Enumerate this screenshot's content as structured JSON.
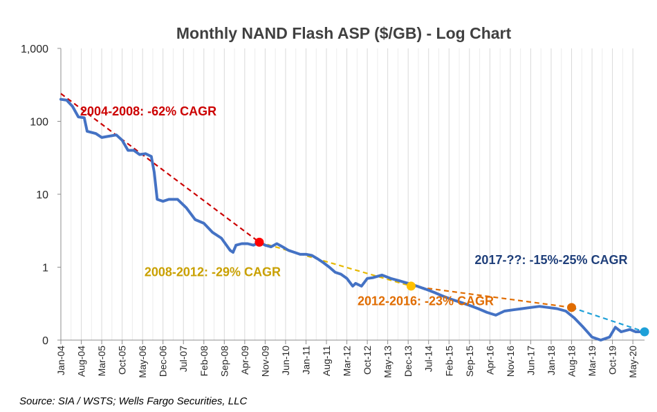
{
  "chart_data": {
    "type": "line",
    "title": "Monthly NAND Flash ASP ($/GB) - Log Chart",
    "source": "Source: SIA / WSTS; Wells Fargo Securities, LLC",
    "y_scale": "log",
    "ylim": [
      0.1,
      1000
    ],
    "yticks": [
      {
        "value": 1000,
        "label": "1,000"
      },
      {
        "value": 100,
        "label": "100"
      },
      {
        "value": 10,
        "label": "10"
      },
      {
        "value": 1,
        "label": "1"
      },
      {
        "value": 0.1,
        "label": "0"
      }
    ],
    "x_start": "2004-01",
    "x_end": "2020-09",
    "xtick_labels": [
      "Jan-04",
      "Aug-04",
      "Mar-05",
      "Oct-05",
      "May-06",
      "Dec-06",
      "Jul-07",
      "Feb-08",
      "Sep-08",
      "Apr-09",
      "Nov-09",
      "Jun-10",
      "Jan-11",
      "Aug-11",
      "Mar-12",
      "Oct-12",
      "May-13",
      "Dec-13",
      "Jul-14",
      "Feb-15",
      "Sep-15",
      "Apr-16",
      "Nov-16",
      "Jun-17",
      "Jan-18",
      "Aug-18",
      "Mar-19",
      "Oct-19",
      "May-20"
    ],
    "grid": "vertical",
    "colors": {
      "series": "#4472c4",
      "trend_2004": "#cc0000",
      "trend_2008": "#e6b800",
      "trend_2012": "#e06c00",
      "trend_2017": "#1ea0d8",
      "annotation_2017": "#1f3f7a",
      "annotation_2008": "#c9a000"
    },
    "series": [
      {
        "name": "",
        "points": [
          [
            "2004-01",
            200
          ],
          [
            "2004-03",
            195
          ],
          [
            "2004-05",
            160
          ],
          [
            "2004-07",
            115
          ],
          [
            "2004-09",
            112
          ],
          [
            "2004-10",
            73
          ],
          [
            "2005-01",
            68
          ],
          [
            "2005-03",
            60
          ],
          [
            "2005-05",
            62
          ],
          [
            "2005-08",
            65
          ],
          [
            "2005-10",
            55
          ],
          [
            "2005-12",
            40
          ],
          [
            "2006-02",
            40
          ],
          [
            "2006-04",
            35
          ],
          [
            "2006-06",
            36
          ],
          [
            "2006-08",
            33
          ],
          [
            "2006-09",
            20
          ],
          [
            "2006-10",
            8.5
          ],
          [
            "2006-12",
            8
          ],
          [
            "2007-02",
            8.5
          ],
          [
            "2007-05",
            8.5
          ],
          [
            "2007-08",
            6.5
          ],
          [
            "2007-11",
            4.5
          ],
          [
            "2008-02",
            4.0
          ],
          [
            "2008-05",
            3.0
          ],
          [
            "2008-08",
            2.5
          ],
          [
            "2008-11",
            1.7
          ],
          [
            "2008-12",
            1.6
          ],
          [
            "2009-01",
            2.0
          ],
          [
            "2009-03",
            2.1
          ],
          [
            "2009-05",
            2.1
          ],
          [
            "2009-07",
            2.0
          ],
          [
            "2009-09",
            2.2
          ],
          [
            "2009-11",
            2.0
          ],
          [
            "2010-01",
            1.9
          ],
          [
            "2010-03",
            2.1
          ],
          [
            "2010-05",
            1.9
          ],
          [
            "2010-07",
            1.7
          ],
          [
            "2010-09",
            1.6
          ],
          [
            "2010-11",
            1.5
          ],
          [
            "2011-01",
            1.5
          ],
          [
            "2011-03",
            1.45
          ],
          [
            "2011-05",
            1.3
          ],
          [
            "2011-07",
            1.15
          ],
          [
            "2011-09",
            1.0
          ],
          [
            "2011-11",
            0.85
          ],
          [
            "2012-01",
            0.8
          ],
          [
            "2012-03",
            0.7
          ],
          [
            "2012-05",
            0.55
          ],
          [
            "2012-06",
            0.6
          ],
          [
            "2012-08",
            0.55
          ],
          [
            "2012-10",
            0.7
          ],
          [
            "2012-12",
            0.72
          ],
          [
            "2013-03",
            0.78
          ],
          [
            "2013-06",
            0.7
          ],
          [
            "2013-09",
            0.65
          ],
          [
            "2013-12",
            0.6
          ],
          [
            "2014-03",
            0.55
          ],
          [
            "2014-06",
            0.5
          ],
          [
            "2014-09",
            0.45
          ],
          [
            "2014-12",
            0.4
          ],
          [
            "2015-03",
            0.36
          ],
          [
            "2015-06",
            0.33
          ],
          [
            "2015-09",
            0.3
          ],
          [
            "2015-12",
            0.27
          ],
          [
            "2016-03",
            0.24
          ],
          [
            "2016-06",
            0.22
          ],
          [
            "2016-09",
            0.25
          ],
          [
            "2016-12",
            0.26
          ],
          [
            "2017-03",
            0.27
          ],
          [
            "2017-06",
            0.28
          ],
          [
            "2017-09",
            0.29
          ],
          [
            "2017-12",
            0.28
          ],
          [
            "2018-03",
            0.27
          ],
          [
            "2018-06",
            0.25
          ],
          [
            "2018-09",
            0.2
          ],
          [
            "2018-12",
            0.15
          ],
          [
            "2019-03",
            0.11
          ],
          [
            "2019-06",
            0.1
          ],
          [
            "2019-09",
            0.11
          ],
          [
            "2019-11",
            0.15
          ],
          [
            "2020-01",
            0.13
          ],
          [
            "2020-04",
            0.14
          ],
          [
            "2020-06",
            0.13
          ],
          [
            "2020-08",
            0.13
          ]
        ]
      }
    ],
    "trend_lines": [
      {
        "label": "2004-2008: -62% CAGR",
        "from": [
          "2004-01",
          240
        ],
        "to": [
          "2009-09",
          2.2
        ],
        "color_key": "trend_2004",
        "dot": true
      },
      {
        "label": "2008-2012: -29% CAGR",
        "from": [
          "2009-09",
          2.2
        ],
        "to": [
          "2014-01",
          0.55
        ],
        "color_key": "trend_2008",
        "dot": true
      },
      {
        "label": "2012-2016: -23% CAGR",
        "from": [
          "2014-01",
          0.55
        ],
        "to": [
          "2018-08",
          0.28
        ],
        "color_key": "trend_2012",
        "dot": true
      },
      {
        "label": "2017-??: -15%-25% CAGR",
        "from": [
          "2018-08",
          0.28
        ],
        "to": [
          "2020-09",
          0.13
        ],
        "color_key": "trend_2017",
        "dot": true
      }
    ],
    "annotations": [
      {
        "text": "2004-2008: -62% CAGR",
        "color_key": "trend_2004",
        "x": "2006-07",
        "y": 120
      },
      {
        "text": "2008-2012: -29% CAGR",
        "color_key": "annotation_2008",
        "x": "2008-05",
        "y": 0.75
      },
      {
        "text": "2012-2016: -23% CAGR",
        "color_key": "trend_2012",
        "x": "2014-06",
        "y": 0.3
      },
      {
        "text": "2017-??: -15%-25% CAGR",
        "color_key": "annotation_2017",
        "x": "2018-01",
        "y": 1.1
      }
    ]
  }
}
